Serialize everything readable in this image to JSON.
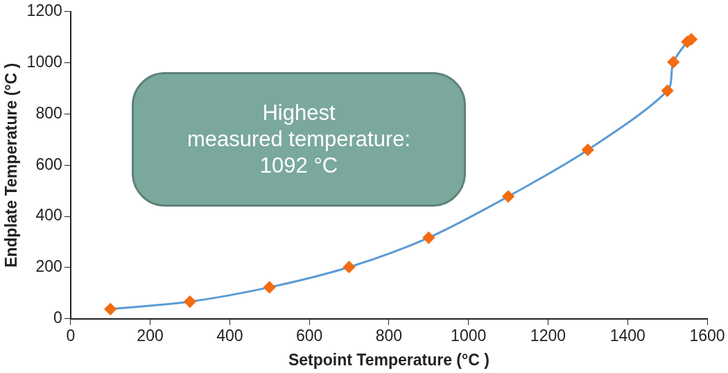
{
  "chart_data": {
    "type": "line",
    "xlabel": "Setpoint Temperature (°C )",
    "ylabel": "Endplate Temperature (°C )",
    "annotations": [
      "Highest\nmeasured temperature:\n1092 °C"
    ],
    "x": [
      100,
      300,
      500,
      700,
      900,
      1100,
      1300,
      1500,
      1515,
      1550,
      1560
    ],
    "series": [
      {
        "color": "#5b9bd5",
        "colors": [
          "#f36b12",
          "#f36b12",
          "#f36b12",
          "#f36b12",
          "#f36b12",
          "#f36b12",
          "#f36b12",
          "#f36b12",
          "#f36b12",
          "#f36b12",
          "#f36b12"
        ],
        "values": [
          38,
          67,
          123,
          202,
          317,
          478,
          660,
          891,
          1003,
          1082,
          1092
        ]
      }
    ],
    "xlim": [
      0,
      1600
    ],
    "xticks": [
      0,
      200,
      400,
      600,
      800,
      1000,
      1200,
      1400,
      1600
    ],
    "ylim": [
      0,
      1200
    ],
    "yticks": [
      0,
      200,
      400,
      600,
      800,
      1000,
      1200
    ],
    "grid": false,
    "legend": false,
    "marker": "diamond",
    "line_style": "solid"
  }
}
